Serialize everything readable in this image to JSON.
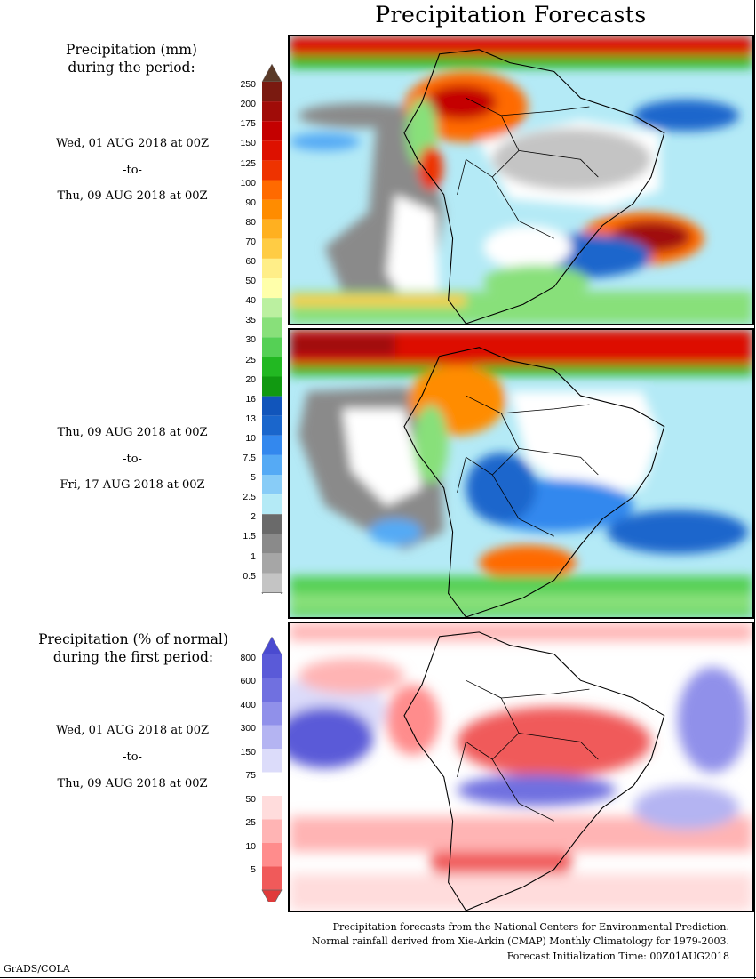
{
  "title": "Precipitation Forecasts",
  "section1": {
    "title_line1": "Precipitation (mm)",
    "title_line2": "during the period:",
    "period1": {
      "from": "Wed, 01 AUG 2018 at 00Z",
      "sep": "-to-",
      "to": "Thu, 09 AUG 2018 at 00Z"
    },
    "period2": {
      "from": "Thu, 09 AUG 2018 at 00Z",
      "sep": "-to-",
      "to": "Fri, 17 AUG 2018 at 00Z"
    }
  },
  "colorbar_mm": {
    "labels": [
      "250",
      "200",
      "175",
      "150",
      "125",
      "100",
      "90",
      "80",
      "70",
      "60",
      "50",
      "40",
      "35",
      "30",
      "25",
      "20",
      "16",
      "13",
      "10",
      "7.5",
      "5",
      "2.5",
      "2",
      "1.5",
      "1",
      "0.5"
    ],
    "colors": [
      "#7a1a10",
      "#a00c08",
      "#c40000",
      "#dd1100",
      "#ee3300",
      "#ff6a00",
      "#ff8c00",
      "#ffb020",
      "#ffcc44",
      "#ffee88",
      "#ffffaa",
      "#bbf0a0",
      "#88e07a",
      "#55d055",
      "#22b822",
      "#119911",
      "#1155bb",
      "#1a66cc",
      "#3388ee",
      "#55aaf5",
      "#88ccf7",
      "#b4eaf6",
      "#6a6a6a",
      "#8a8a8a",
      "#a6a6a6",
      "#c4c4c4"
    ],
    "top_cap_color": "#5a3a28"
  },
  "section2": {
    "title_line1": "Precipitation (% of normal)",
    "title_line2": "during the first period:",
    "period": {
      "from": "Wed, 01 AUG 2018 at 00Z",
      "sep": "-to-",
      "to": "Thu, 09 AUG 2018 at 00Z"
    }
  },
  "colorbar_pct": {
    "labels": [
      "800",
      "600",
      "400",
      "300",
      "150",
      "75",
      "50",
      "25",
      "10",
      "5"
    ],
    "colors": [
      "#5a5ad8",
      "#7070e0",
      "#9090ea",
      "#b4b4f2",
      "#dcdcfa",
      "#ffffff",
      "#ffdcdc",
      "#ffb4b4",
      "#ff8c8c",
      "#f05a5a"
    ],
    "top_cap_color": "#4a4ad0",
    "bottom_cap_color": "#e03a3a"
  },
  "footer": {
    "line1": "Precipitation forecasts from the National Centers for Environmental Prediction.",
    "line2": "Normal rainfall derived from Xie-Arkin (CMAP) Monthly Climatology for 1979-2003.",
    "line3": "Forecast Initialization Time: 00Z01AUG2018"
  },
  "credit": "GrADS/COLA"
}
